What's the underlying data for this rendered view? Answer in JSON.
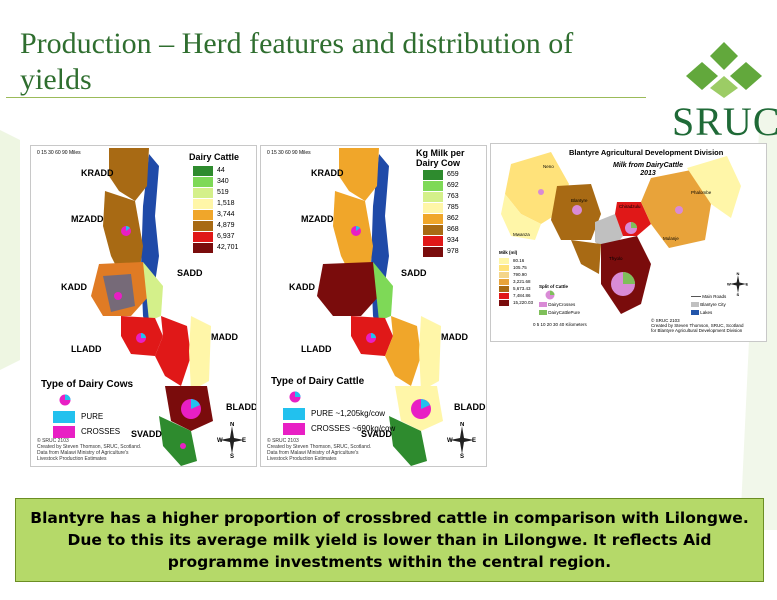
{
  "slide": {
    "title": "Production – Herd features and distribution of yields",
    "callout_text": "Blantyre has a higher proportion of crossbred cattle in comparison with Lilongwe. Due to this its average milk yield is lower than in Lilongwe. It reflects Aid programme investments within the central region."
  },
  "logo": {
    "text": "SRUC",
    "colors": [
      "#62a83c",
      "#1f6a37"
    ]
  },
  "map1": {
    "scale_ticks": "0 15 30     60      90",
    "scale_unit": "Miles",
    "legend_title": "Dairy Cattle",
    "legend": [
      {
        "label": "44",
        "color": "#2e8b2e"
      },
      {
        "label": "340",
        "color": "#7ed957"
      },
      {
        "label": "519",
        "color": "#d4f08a"
      },
      {
        "label": "1,518",
        "color": "#fff6a8"
      },
      {
        "label": "3,744",
        "color": "#f0a62a"
      },
      {
        "label": "4,879",
        "color": "#a86a14"
      },
      {
        "label": "6,937",
        "color": "#e01818"
      },
      {
        "label": "42,701",
        "color": "#7a0c0c"
      }
    ],
    "regions": [
      "KRADD",
      "MZADD",
      "SADD",
      "KADD",
      "MADD",
      "LLADD",
      "BLADD",
      "SVADD"
    ],
    "type_title": "Type of Dairy Cows",
    "types": [
      {
        "label": "PURE",
        "color": "#22c1ee"
      },
      {
        "label": "CROSSES",
        "color": "#e81fc4"
      }
    ],
    "credits": "© SRUC 2103\nCreated by Steven Thomson, SRUC, Scotland.\nData from Malawi Ministry of Agriculture's\nLivestock Production Estimates"
  },
  "map2": {
    "scale_ticks": "0 15 30     60      90",
    "scale_unit": "Miles",
    "legend_title": "Kg Milk per Dairy Cow",
    "legend": [
      {
        "label": "659",
        "color": "#2e8b2e"
      },
      {
        "label": "692",
        "color": "#7ed957"
      },
      {
        "label": "763",
        "color": "#d4f08a"
      },
      {
        "label": "785",
        "color": "#fff6a8"
      },
      {
        "label": "862",
        "color": "#f0a62a"
      },
      {
        "label": "868",
        "color": "#a86a14"
      },
      {
        "label": "934",
        "color": "#e01818"
      },
      {
        "label": "978",
        "color": "#7a0c0c"
      }
    ],
    "regions": [
      "KRADD",
      "MZADD",
      "SADD",
      "KADD",
      "MADD",
      "LLADD",
      "BLADD",
      "SVADD"
    ],
    "type_title": "Type of Dairy Cattle",
    "types": [
      {
        "label": "PURE ~1,205kg/cow",
        "color": "#22c1ee"
      },
      {
        "label": "CROSSES ~690kg/cow",
        "color": "#e81fc4"
      }
    ],
    "credits": "© SRUC 2103\nCreated by Steven Thomson, SRUC, Scotland.\nData from Malawi Ministry of Agriculture's\nLivestock Production Estimates"
  },
  "map3": {
    "title": "Blantyre Agricultural Development Division",
    "subtitle": "Milk from DairyCattle\n2013",
    "legend_title": "Milk (ml)",
    "legend": [
      {
        "label": "80.16",
        "color": "#fff6a8"
      },
      {
        "label": "105.75",
        "color": "#ffe27a"
      },
      {
        "label": "790.90",
        "color": "#f4d58a"
      },
      {
        "label": "3,221.68",
        "color": "#e8a33a"
      },
      {
        "label": "5,673.43",
        "color": "#a86a14"
      },
      {
        "label": "7,484.86",
        "color": "#e01818"
      },
      {
        "label": "15,220.03",
        "color": "#7a0c0c"
      }
    ],
    "split_title": "Split of Cattle",
    "split": [
      {
        "label": "DairyCrosses",
        "color": "#d98bd6"
      },
      {
        "label": "DairyCattlePure",
        "color": "#7fbf5a"
      }
    ],
    "feature_legend": [
      {
        "label": "Main Roads",
        "color": "#555555"
      },
      {
        "label": "Blantyre City",
        "color": "#c0c0c0"
      },
      {
        "label": "Lakes",
        "color": "#2255aa"
      }
    ],
    "scale_ticks": "0   5  10    20    30    40",
    "scale_unit": "Kilometers",
    "credits": "© SRUC 2103\nCreated by Steven Thomson, SRUC, Scotland\nfor Blantyre Agricultural Development Division",
    "places": [
      "Neno",
      "Mwanza",
      "Blantyre",
      "Chiradzulu",
      "Phalombe",
      "Mulanje",
      "Thyolo"
    ]
  }
}
